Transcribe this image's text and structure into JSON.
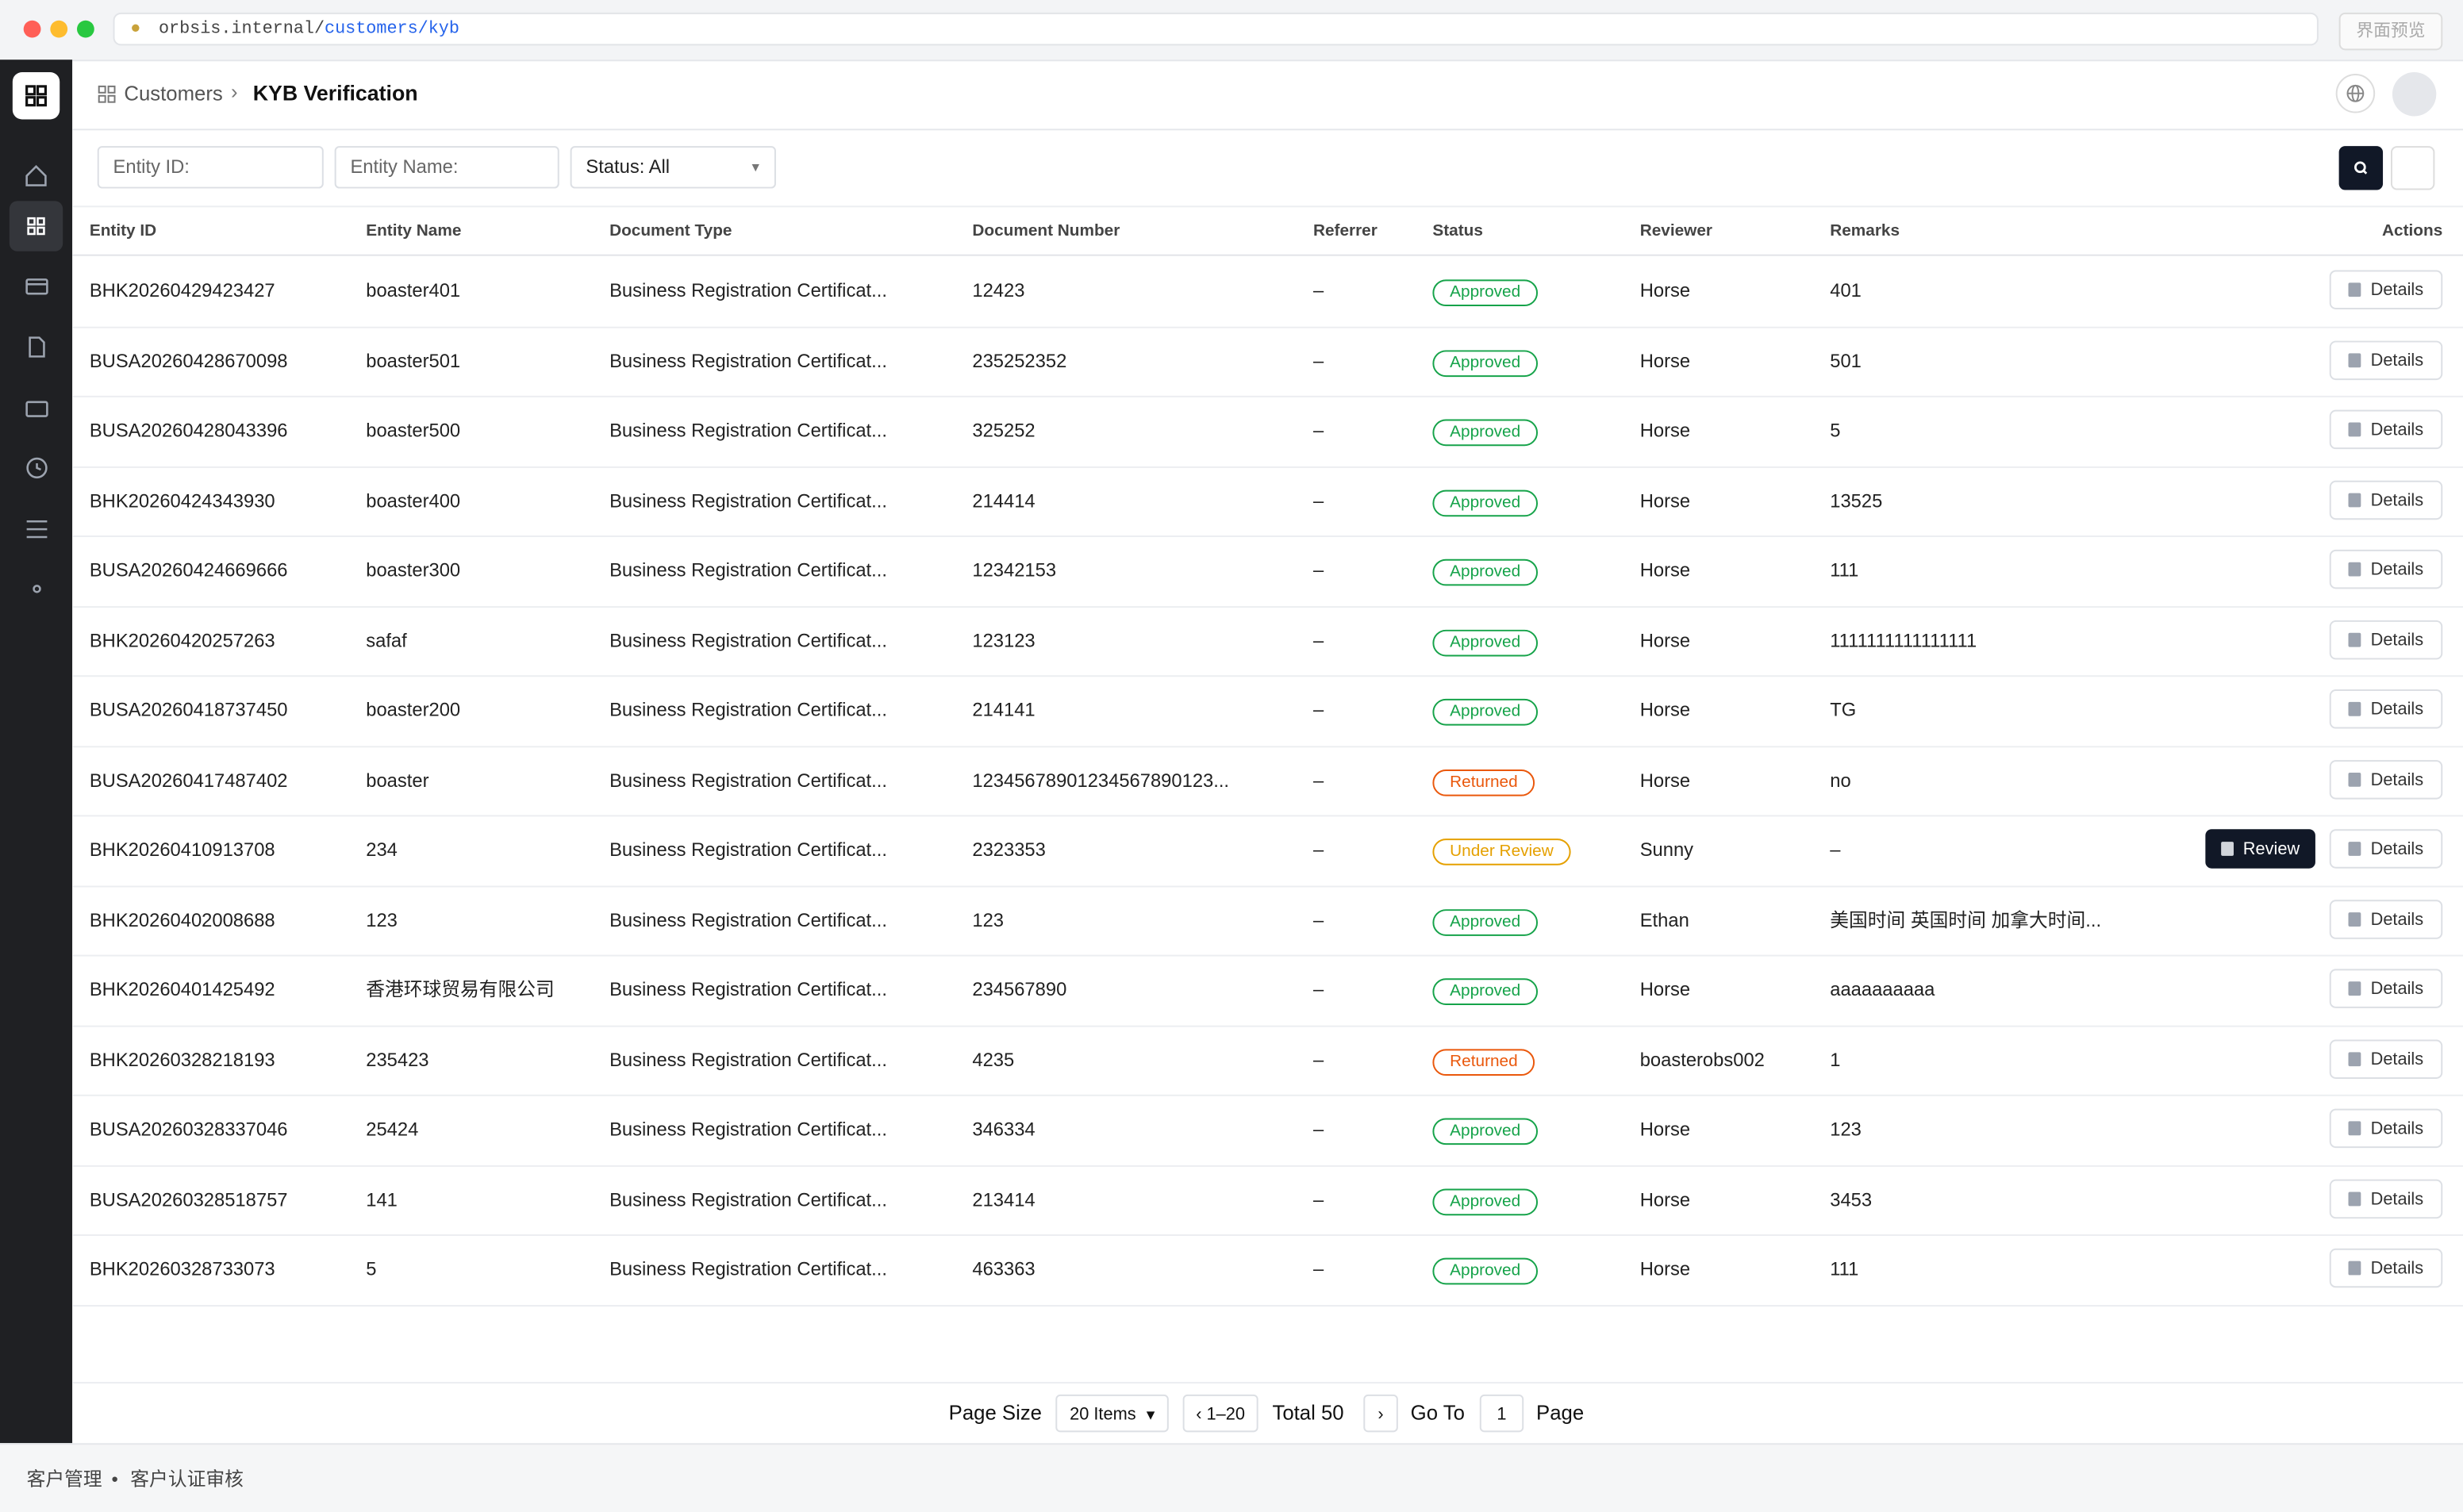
{
  "browser": {
    "url_host": "orbsis.internal/",
    "url_path": "customers/kyb",
    "preview_button": "界面预览"
  },
  "breadcrumb": {
    "parent": "Customers",
    "current": "KYB Verification"
  },
  "filters": {
    "entity_id": "Entity ID:",
    "entity_name": "Entity Name:",
    "status": "Status: All"
  },
  "table": {
    "headers": [
      "Entity ID",
      "Entity Name",
      "Document Type",
      "Document Number",
      "Referrer",
      "Status",
      "Reviewer",
      "Remarks",
      "Actions"
    ],
    "rows": [
      {
        "cells": [
          "BHK20260429423427",
          "boaster401",
          "Business Registration Certificat...",
          "12423",
          "–",
          "Approved",
          "Horse",
          "401"
        ],
        "status_color": "#16a34a",
        "actions": [
          "Details"
        ]
      },
      {
        "cells": [
          "BUSA20260428670098",
          "boaster501",
          "Business Registration Certificat...",
          "235252352",
          "–",
          "Approved",
          "Horse",
          "501"
        ],
        "status_color": "#16a34a",
        "actions": [
          "Details"
        ]
      },
      {
        "cells": [
          "BUSA20260428043396",
          "boaster500",
          "Business Registration Certificat...",
          "325252",
          "–",
          "Approved",
          "Horse",
          "5"
        ],
        "status_color": "#16a34a",
        "actions": [
          "Details"
        ]
      },
      {
        "cells": [
          "BHK20260424343930",
          "boaster400",
          "Business Registration Certificat...",
          "214414",
          "–",
          "Approved",
          "Horse",
          "13525"
        ],
        "status_color": "#16a34a",
        "actions": [
          "Details"
        ]
      },
      {
        "cells": [
          "BUSA20260424669666",
          "boaster300",
          "Business Registration Certificat...",
          "12342153",
          "–",
          "Approved",
          "Horse",
          "111"
        ],
        "status_color": "#16a34a",
        "actions": [
          "Details"
        ]
      },
      {
        "cells": [
          "BHK20260420257263",
          "safaf",
          "Business Registration Certificat...",
          "123123",
          "–",
          "Approved",
          "Horse",
          "1111111111111111"
        ],
        "status_color": "#16a34a",
        "actions": [
          "Details"
        ]
      },
      {
        "cells": [
          "BUSA20260418737450",
          "boaster200",
          "Business Registration Certificat...",
          "214141",
          "–",
          "Approved",
          "Horse",
          "TG"
        ],
        "status_color": "#16a34a",
        "actions": [
          "Details"
        ]
      },
      {
        "cells": [
          "BUSA20260417487402",
          "boaster",
          "Business Registration Certificat...",
          "12345678901234567890123...",
          "–",
          "Returned",
          "Horse",
          "no"
        ],
        "status_color": "#ea580c",
        "actions": [
          "Details"
        ]
      },
      {
        "cells": [
          "BHK20260410913708",
          "234",
          "Business Registration Certificat...",
          "2323353",
          "–",
          "Under Review",
          "Sunny",
          "–"
        ],
        "status_color": "#e5a000",
        "actions": [
          "Review",
          "Details"
        ]
      },
      {
        "cells": [
          "BHK20260402008688",
          "123",
          "Business Registration Certificat...",
          "123",
          "–",
          "Approved",
          "Ethan",
          "美国时间 英国时间 加拿大时间..."
        ],
        "status_color": "#16a34a",
        "actions": [
          "Details"
        ]
      },
      {
        "cells": [
          "BHK20260401425492",
          "香港环球贸易有限公司",
          "Business Registration Certificat...",
          "234567890",
          "–",
          "Approved",
          "Horse",
          "aaaaaaaaaa"
        ],
        "status_color": "#16a34a",
        "actions": [
          "Details"
        ]
      },
      {
        "cells": [
          "BHK20260328218193",
          "235423",
          "Business Registration Certificat...",
          "4235",
          "–",
          "Returned",
          "boasterobs002",
          "1"
        ],
        "status_color": "#ea580c",
        "actions": [
          "Details"
        ]
      },
      {
        "cells": [
          "BUSA20260328337046",
          "25424",
          "Business Registration Certificat...",
          "346334",
          "–",
          "Approved",
          "Horse",
          "123"
        ],
        "status_color": "#16a34a",
        "actions": [
          "Details"
        ]
      },
      {
        "cells": [
          "BUSA20260328518757",
          "141",
          "Business Registration Certificat...",
          "213414",
          "–",
          "Approved",
          "Horse",
          "3453"
        ],
        "status_color": "#16a34a",
        "actions": [
          "Details"
        ]
      },
      {
        "cells": [
          "BHK20260328733073",
          "5",
          "Business Registration Certificat...",
          "463363",
          "–",
          "Approved",
          "Horse",
          "111"
        ],
        "status_color": "#16a34a",
        "actions": [
          "Details"
        ]
      }
    ]
  },
  "pagination": {
    "page_size_label": "Page Size",
    "page_size": "20 Items",
    "range": "‹ 1–20",
    "total": "Total 50",
    "next": "›",
    "go_to": "Go To",
    "page_input": "1",
    "page_label": "Page"
  },
  "footer": {
    "parent": "客户管理",
    "separator": "•",
    "current": "客户认证审核"
  }
}
